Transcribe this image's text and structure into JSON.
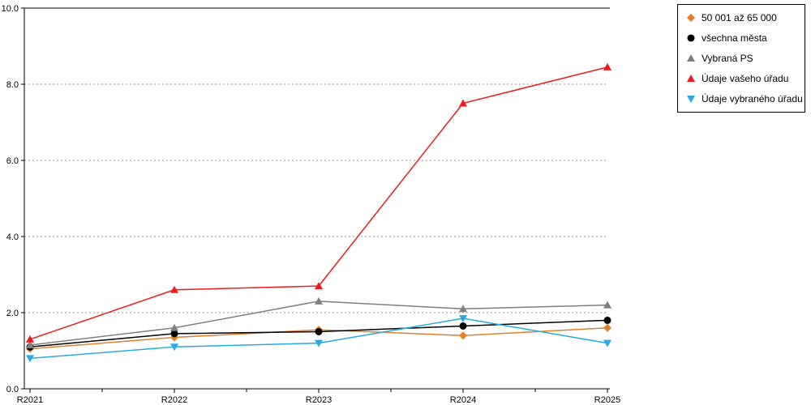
{
  "chart_data": {
    "type": "line",
    "categories": [
      "R2021",
      "R2022",
      "R2023",
      "R2024",
      "R2025"
    ],
    "series": [
      {
        "name": "50 001 až 65 000",
        "marker": "diamond",
        "color": "#e2802c",
        "values": [
          1.05,
          1.35,
          1.55,
          1.4,
          1.6
        ]
      },
      {
        "name": "všechna města",
        "marker": "circle",
        "color": "#000000",
        "values": [
          1.1,
          1.45,
          1.5,
          1.65,
          1.8
        ]
      },
      {
        "name": "Vybraná PS",
        "marker": "triangle-up",
        "color": "#7f7f7f",
        "values": [
          1.15,
          1.6,
          2.3,
          2.1,
          2.2
        ]
      },
      {
        "name": "Údaje vašeho úřadu",
        "marker": "triangle-up",
        "color": "#ed1c1c",
        "values": [
          1.3,
          2.6,
          2.7,
          7.5,
          8.45
        ]
      },
      {
        "name": "Údaje vybraného úřadu",
        "marker": "triangle-down",
        "color": "#29abe2",
        "values": [
          0.8,
          1.1,
          1.2,
          1.85,
          1.2
        ]
      }
    ],
    "title": "",
    "xlabel": "",
    "ylabel": "",
    "ylim": [
      0,
      10
    ],
    "yticks": [
      0,
      2,
      4,
      6,
      8,
      10
    ],
    "ytick_labels": [
      "0.0",
      "2.0",
      "4.0",
      "6.0",
      "8.0",
      "10.0"
    ],
    "grid": true,
    "grid_style": "dotted",
    "legend_position": "outside-top-right",
    "axis_color": "#000000",
    "grid_color": "#999999"
  }
}
